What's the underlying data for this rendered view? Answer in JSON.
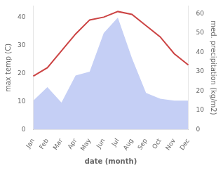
{
  "chart_data": {
    "type": "line",
    "categories": [
      "Jan",
      "Feb",
      "Mar",
      "Apr",
      "May",
      "Jun",
      "Jul",
      "Aug",
      "Sep",
      "Oct",
      "Nov",
      "Dec"
    ],
    "series": [
      {
        "type": "area",
        "color": "#c5cff5",
        "axis": "y2",
        "values": [
          15,
          22,
          14,
          28,
          30,
          50,
          58,
          37,
          19,
          16,
          15,
          15
        ]
      },
      {
        "type": "line",
        "color": "#cc4444",
        "values": [
          19,
          22,
          28,
          34,
          39,
          40,
          42,
          41,
          37,
          33,
          27,
          23
        ]
      }
    ],
    "xlabel": "date (month)",
    "ylabel": "max temp (C)",
    "y2label": "med. precipitation (kg/m2)",
    "ylim": [
      0,
      44
    ],
    "yticks": [
      0,
      10,
      20,
      30,
      40
    ],
    "y2lim": [
      0,
      64
    ],
    "y2ticks": [
      0,
      10,
      20,
      30,
      40,
      50,
      60
    ],
    "grid": false
  }
}
